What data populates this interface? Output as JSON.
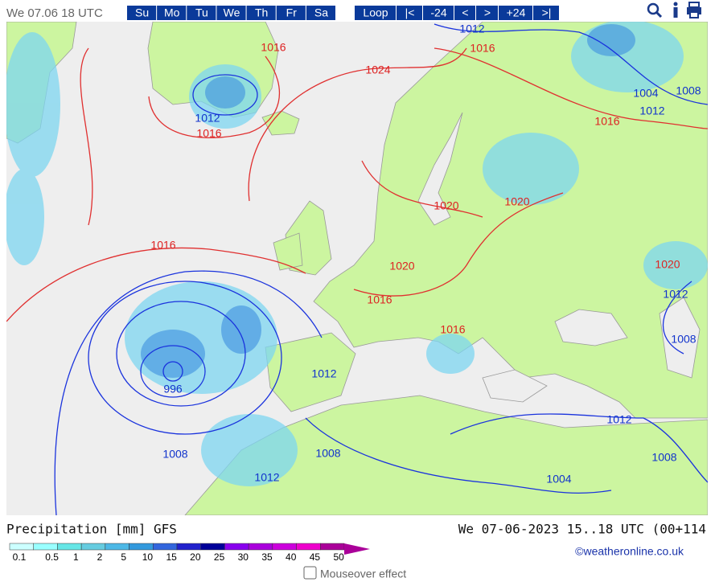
{
  "header": {
    "timestamp": "We 07.06 18 UTC",
    "days": [
      "Su",
      "Mo",
      "Tu",
      "We",
      "Th",
      "Fr",
      "Sa"
    ],
    "nav": [
      "Loop",
      "|<",
      "-24",
      "<",
      ">",
      "+24",
      ">|"
    ]
  },
  "map": {
    "isobar_labels": [
      "1012",
      "1016",
      "1016",
      "1024",
      "1012",
      "1016",
      "1004",
      "1008",
      "1012",
      "1016",
      "1020",
      "1020",
      "1020",
      "1016",
      "1016",
      "1020",
      "1012",
      "1008",
      "1012",
      "996",
      "1012",
      "1008",
      "1008",
      "1012",
      "1008",
      "1004",
      "1016"
    ]
  },
  "legend": {
    "title": "Precipitation [mm] GFS",
    "valid": "We 07-06-2023 15..18 UTC (00+114",
    "scale": [
      "0.1",
      "0.5",
      "1",
      "2",
      "5",
      "10",
      "15",
      "20",
      "25",
      "30",
      "35",
      "40",
      "45",
      "50"
    ]
  },
  "credit": "©weatheronline.co.uk",
  "mouseover": "Mouseover effect"
}
